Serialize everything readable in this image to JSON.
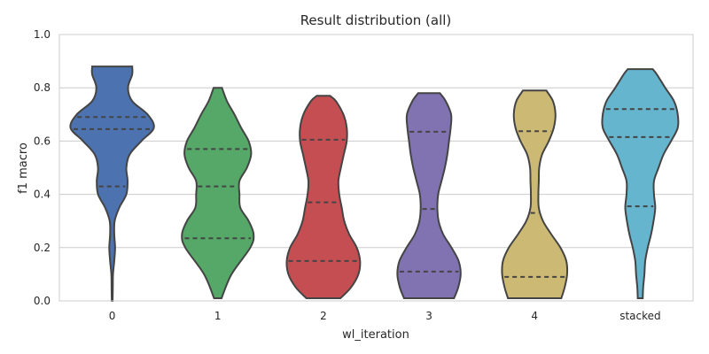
{
  "chart_data": {
    "type": "violin",
    "title": "Result distribution (all)",
    "xlabel": "wl_iteration",
    "ylabel": "f1 macro",
    "ylim": [
      0.0,
      1.0
    ],
    "yticks": [
      "0.0",
      "0.2",
      "0.4",
      "0.6",
      "0.8",
      "1.0"
    ],
    "grid": true,
    "categories": [
      "0",
      "1",
      "2",
      "3",
      "4",
      "stacked"
    ],
    "series": [
      {
        "color": "#4c72b0",
        "min": 0.0,
        "max": 0.88,
        "quartiles": [
          0.43,
          0.645,
          0.69
        ],
        "profile": [
          [
            0.0,
            0.01
          ],
          [
            0.05,
            0.015
          ],
          [
            0.1,
            0.02
          ],
          [
            0.15,
            0.05
          ],
          [
            0.2,
            0.07
          ],
          [
            0.25,
            0.05
          ],
          [
            0.3,
            0.06
          ],
          [
            0.35,
            0.17
          ],
          [
            0.4,
            0.34
          ],
          [
            0.45,
            0.37
          ],
          [
            0.5,
            0.34
          ],
          [
            0.55,
            0.42
          ],
          [
            0.6,
            0.7
          ],
          [
            0.65,
            1.0
          ],
          [
            0.7,
            0.85
          ],
          [
            0.75,
            0.48
          ],
          [
            0.8,
            0.38
          ],
          [
            0.85,
            0.48
          ],
          [
            0.88,
            0.48
          ]
        ]
      },
      {
        "color": "#55a868",
        "min": 0.01,
        "max": 0.8,
        "quartiles": [
          0.235,
          0.43,
          0.57
        ],
        "profile": [
          [
            0.01,
            0.09
          ],
          [
            0.1,
            0.33
          ],
          [
            0.2,
            0.78
          ],
          [
            0.25,
            0.86
          ],
          [
            0.3,
            0.74
          ],
          [
            0.35,
            0.54
          ],
          [
            0.4,
            0.52
          ],
          [
            0.45,
            0.52
          ],
          [
            0.5,
            0.7
          ],
          [
            0.55,
            0.8
          ],
          [
            0.6,
            0.74
          ],
          [
            0.65,
            0.56
          ],
          [
            0.7,
            0.4
          ],
          [
            0.75,
            0.22
          ],
          [
            0.8,
            0.1
          ]
        ]
      },
      {
        "color": "#c44e52",
        "min": 0.01,
        "max": 0.77,
        "quartiles": [
          0.15,
          0.37,
          0.605
        ],
        "profile": [
          [
            0.01,
            0.41
          ],
          [
            0.05,
            0.66
          ],
          [
            0.1,
            0.84
          ],
          [
            0.15,
            0.88
          ],
          [
            0.2,
            0.8
          ],
          [
            0.25,
            0.62
          ],
          [
            0.3,
            0.5
          ],
          [
            0.35,
            0.44
          ],
          [
            0.4,
            0.38
          ],
          [
            0.45,
            0.36
          ],
          [
            0.5,
            0.42
          ],
          [
            0.55,
            0.49
          ],
          [
            0.6,
            0.56
          ],
          [
            0.65,
            0.56
          ],
          [
            0.7,
            0.48
          ],
          [
            0.75,
            0.3
          ],
          [
            0.77,
            0.16
          ]
        ]
      },
      {
        "color": "#8172b2",
        "min": 0.01,
        "max": 0.78,
        "quartiles": [
          0.11,
          0.345,
          0.635
        ],
        "profile": [
          [
            0.01,
            0.6
          ],
          [
            0.05,
            0.7
          ],
          [
            0.1,
            0.76
          ],
          [
            0.15,
            0.71
          ],
          [
            0.2,
            0.54
          ],
          [
            0.25,
            0.34
          ],
          [
            0.3,
            0.23
          ],
          [
            0.35,
            0.2
          ],
          [
            0.4,
            0.22
          ],
          [
            0.45,
            0.3
          ],
          [
            0.5,
            0.38
          ],
          [
            0.55,
            0.44
          ],
          [
            0.6,
            0.48
          ],
          [
            0.65,
            0.52
          ],
          [
            0.7,
            0.53
          ],
          [
            0.75,
            0.4
          ],
          [
            0.78,
            0.26
          ]
        ]
      },
      {
        "color": "#ccb974",
        "min": 0.01,
        "max": 0.79,
        "quartiles": [
          0.09,
          0.33,
          0.637
        ],
        "profile": [
          [
            0.01,
            0.64
          ],
          [
            0.05,
            0.72
          ],
          [
            0.1,
            0.78
          ],
          [
            0.15,
            0.76
          ],
          [
            0.2,
            0.62
          ],
          [
            0.25,
            0.4
          ],
          [
            0.3,
            0.2
          ],
          [
            0.35,
            0.1
          ],
          [
            0.4,
            0.09
          ],
          [
            0.45,
            0.1
          ],
          [
            0.5,
            0.11
          ],
          [
            0.55,
            0.18
          ],
          [
            0.6,
            0.34
          ],
          [
            0.65,
            0.46
          ],
          [
            0.7,
            0.5
          ],
          [
            0.75,
            0.44
          ],
          [
            0.79,
            0.28
          ]
        ]
      },
      {
        "color": "#64b5cd",
        "min": 0.01,
        "max": 0.87,
        "quartiles": [
          0.355,
          0.615,
          0.72
        ],
        "profile": [
          [
            0.01,
            0.06
          ],
          [
            0.05,
            0.07
          ],
          [
            0.1,
            0.1
          ],
          [
            0.15,
            0.12
          ],
          [
            0.2,
            0.18
          ],
          [
            0.25,
            0.26
          ],
          [
            0.3,
            0.32
          ],
          [
            0.35,
            0.36
          ],
          [
            0.4,
            0.33
          ],
          [
            0.45,
            0.33
          ],
          [
            0.5,
            0.44
          ],
          [
            0.55,
            0.56
          ],
          [
            0.6,
            0.74
          ],
          [
            0.65,
            0.9
          ],
          [
            0.7,
            0.9
          ],
          [
            0.75,
            0.81
          ],
          [
            0.8,
            0.6
          ],
          [
            0.85,
            0.4
          ],
          [
            0.87,
            0.3
          ]
        ]
      }
    ]
  }
}
